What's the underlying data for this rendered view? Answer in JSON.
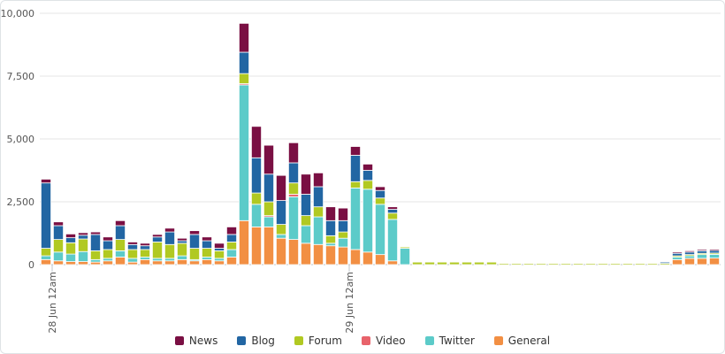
{
  "chart_data": {
    "type": "bar",
    "stacked": true,
    "title": "",
    "xlabel": "",
    "ylabel": "",
    "ylim": [
      0,
      10000
    ],
    "yticks": [
      0,
      2500,
      5000,
      7500,
      10000
    ],
    "ytick_labels": [
      "0",
      "2,500",
      "5,000",
      "7,500",
      "10,000"
    ],
    "x_tick_labels": [
      {
        "index": 1,
        "label": "28 Jun 12am"
      },
      {
        "index": 25,
        "label": "29 Jun 12am"
      }
    ],
    "grid": true,
    "legend_position": "bottom",
    "series": [
      {
        "name": "General",
        "color": "#f28f43",
        "values": [
          200,
          150,
          120,
          120,
          100,
          150,
          300,
          100,
          200,
          150,
          150,
          200,
          150,
          200,
          150,
          300,
          1750,
          1500,
          1500,
          1050,
          1000,
          850,
          800,
          750,
          700,
          600,
          500,
          400,
          150,
          0,
          0,
          0,
          0,
          0,
          0,
          0,
          0,
          0,
          0,
          0,
          0,
          0,
          0,
          0,
          0,
          0,
          0,
          0,
          0,
          0,
          0,
          200,
          250,
          250,
          260
        ]
      },
      {
        "name": "Twitter",
        "color": "#5ccbc9",
        "values": [
          150,
          350,
          300,
          400,
          100,
          100,
          250,
          150,
          100,
          100,
          100,
          150,
          50,
          100,
          100,
          300,
          5400,
          900,
          400,
          150,
          1700,
          700,
          1100,
          100,
          350,
          2450,
          2500,
          2000,
          1650,
          650,
          0,
          0,
          0,
          0,
          0,
          0,
          0,
          0,
          0,
          0,
          0,
          0,
          0,
          0,
          0,
          0,
          0,
          0,
          0,
          0,
          0,
          100,
          100,
          150,
          150
        ]
      },
      {
        "name": "Video",
        "color": "#e8636b",
        "values": [
          0,
          0,
          0,
          0,
          0,
          0,
          0,
          0,
          0,
          0,
          0,
          0,
          0,
          0,
          0,
          0,
          50,
          0,
          50,
          0,
          100,
          0,
          0,
          0,
          0,
          0,
          0,
          0,
          0,
          0,
          0,
          0,
          0,
          0,
          0,
          0,
          0,
          0,
          0,
          0,
          0,
          0,
          0,
          0,
          0,
          0,
          0,
          0,
          0,
          0,
          0,
          0,
          0,
          0,
          0
        ]
      },
      {
        "name": "Forum",
        "color": "#b1c922",
        "values": [
          300,
          500,
          450,
          500,
          350,
          350,
          450,
          350,
          300,
          650,
          550,
          500,
          450,
          350,
          300,
          300,
          400,
          450,
          550,
          400,
          450,
          400,
          400,
          300,
          250,
          250,
          350,
          250,
          250,
          50,
          100,
          100,
          100,
          100,
          100,
          100,
          100,
          50,
          50,
          50,
          50,
          50,
          50,
          50,
          50,
          50,
          50,
          50,
          50,
          50,
          50,
          50,
          50,
          50,
          50
        ]
      },
      {
        "name": "Blog",
        "color": "#2266a3",
        "values": [
          2600,
          550,
          200,
          150,
          650,
          350,
          550,
          200,
          150,
          200,
          500,
          100,
          550,
          300,
          100,
          300,
          850,
          1400,
          1100,
          950,
          800,
          850,
          800,
          600,
          450,
          1050,
          400,
          300,
          150,
          0,
          0,
          0,
          0,
          0,
          0,
          0,
          0,
          0,
          0,
          0,
          0,
          0,
          0,
          0,
          0,
          0,
          0,
          0,
          0,
          0,
          50,
          100,
          100,
          100,
          100
        ]
      },
      {
        "name": "News",
        "color": "#7a0f43",
        "values": [
          150,
          150,
          150,
          100,
          100,
          150,
          200,
          100,
          100,
          100,
          150,
          100,
          150,
          150,
          200,
          300,
          1150,
          1250,
          1150,
          1000,
          800,
          800,
          550,
          550,
          500,
          350,
          250,
          150,
          100,
          0,
          0,
          0,
          0,
          0,
          0,
          0,
          0,
          0,
          0,
          0,
          0,
          0,
          0,
          0,
          0,
          0,
          0,
          0,
          0,
          0,
          0,
          50,
          50,
          50,
          50
        ]
      }
    ]
  },
  "legend": {
    "items": [
      {
        "label": "News",
        "color": "#7a0f43"
      },
      {
        "label": "Blog",
        "color": "#2266a3"
      },
      {
        "label": "Forum",
        "color": "#b1c922"
      },
      {
        "label": "Video",
        "color": "#e8636b"
      },
      {
        "label": "Twitter",
        "color": "#5ccbc9"
      },
      {
        "label": "General",
        "color": "#f28f43"
      }
    ]
  }
}
